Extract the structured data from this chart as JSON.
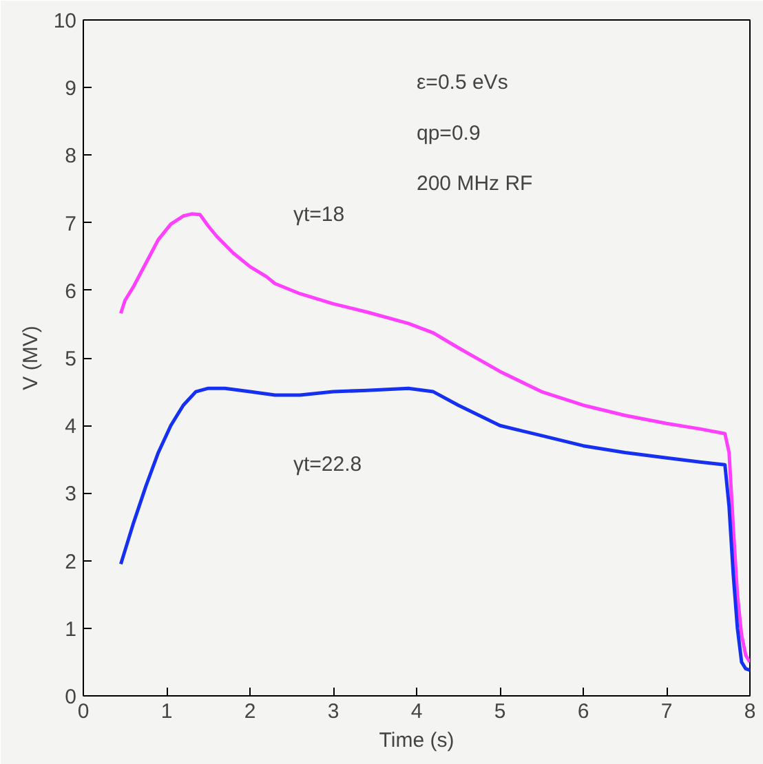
{
  "chart_data": {
    "type": "line",
    "xlabel": "Time (s)",
    "ylabel": "V (MV)",
    "xlim": [
      0,
      8
    ],
    "ylim": [
      0,
      10
    ],
    "xticks": [
      0,
      1,
      2,
      3,
      4,
      5,
      6,
      7,
      8
    ],
    "yticks": [
      0,
      1,
      2,
      3,
      4,
      5,
      6,
      7,
      8,
      9,
      10
    ],
    "grid": false,
    "marker": "none",
    "line_style": "solid",
    "annotations": [
      "ε=0.5 eVs",
      "qp=0.9",
      "200 MHz RF",
      "γt=18",
      "γt=22.8"
    ],
    "series": [
      {
        "color": "#ff40ff",
        "x": [
          0.45,
          0.5,
          0.6,
          0.75,
          0.9,
          1.05,
          1.2,
          1.3,
          1.4,
          1.5,
          1.6,
          1.8,
          2.0,
          2.2,
          2.3,
          2.6,
          3.0,
          3.4,
          3.9,
          4.2,
          4.5,
          5.0,
          5.5,
          6.0,
          6.5,
          7.0,
          7.4,
          7.7,
          7.75,
          7.8,
          7.85,
          7.9,
          7.95,
          8.0
        ],
        "values": [
          5.66,
          5.85,
          6.05,
          6.4,
          6.75,
          6.98,
          7.1,
          7.13,
          7.12,
          6.95,
          6.8,
          6.55,
          6.35,
          6.2,
          6.1,
          5.95,
          5.8,
          5.68,
          5.51,
          5.37,
          5.15,
          4.8,
          4.5,
          4.3,
          4.15,
          4.03,
          3.95,
          3.88,
          3.6,
          2.5,
          1.5,
          0.9,
          0.6,
          0.5
        ]
      },
      {
        "color": "#1530f0",
        "x": [
          0.45,
          0.5,
          0.6,
          0.75,
          0.9,
          1.05,
          1.2,
          1.35,
          1.5,
          1.7,
          2.0,
          2.3,
          2.6,
          3.0,
          3.4,
          3.9,
          4.2,
          4.5,
          5.0,
          5.5,
          6.0,
          6.5,
          7.0,
          7.4,
          7.7,
          7.75,
          7.8,
          7.85,
          7.9,
          7.95,
          8.0
        ],
        "values": [
          1.95,
          2.15,
          2.55,
          3.1,
          3.6,
          4.0,
          4.3,
          4.5,
          4.55,
          4.55,
          4.5,
          4.45,
          4.45,
          4.5,
          4.52,
          4.55,
          4.5,
          4.3,
          4.0,
          3.85,
          3.7,
          3.6,
          3.52,
          3.46,
          3.42,
          2.8,
          1.8,
          1.0,
          0.5,
          0.4,
          0.38
        ]
      }
    ]
  }
}
